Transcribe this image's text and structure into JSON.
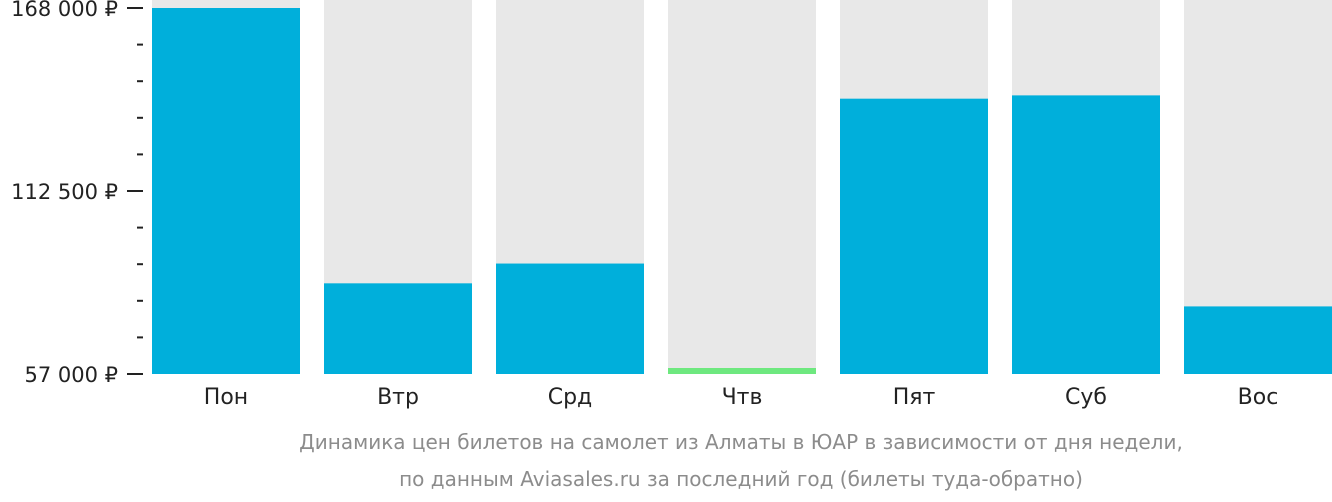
{
  "chart_data": {
    "type": "bar",
    "categories": [
      "Пон",
      "Втр",
      "Срд",
      "Чтв",
      "Пят",
      "Суб",
      "Вос"
    ],
    "values": [
      168000,
      84500,
      90500,
      57800,
      140500,
      141500,
      77500
    ],
    "ylim": [
      57000,
      168000
    ],
    "yticks": [
      {
        "value": 168000,
        "label": "168 000 ₽"
      },
      {
        "value": 112500,
        "label": "112 500 ₽"
      },
      {
        "value": 57000,
        "label": "57 000 ₽"
      }
    ],
    "minor_tick_count_between": 4,
    "colors": {
      "bar": "#00afdb",
      "min_bar": "#6ee87f",
      "background_bar": "#e8e8e8",
      "axis": "#222222"
    },
    "highlight_min_index": 3,
    "caption": [
      "Динамика цен билетов на самолет из Алматы в ЮАР в зависимости от дня недели,",
      "по данным Aviasales.ru за последний год (билеты туда-обратно)"
    ]
  }
}
